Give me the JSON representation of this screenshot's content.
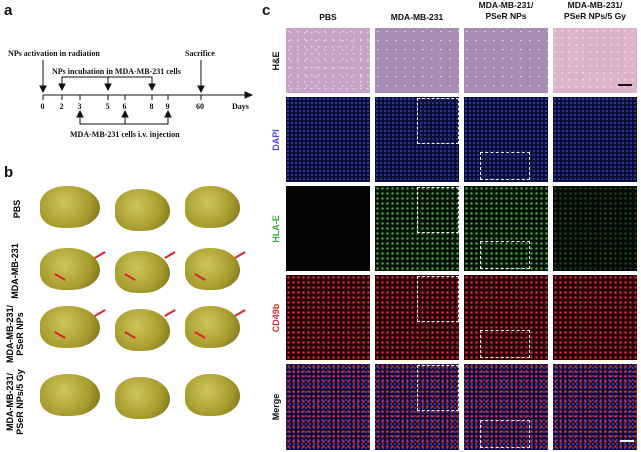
{
  "panels": {
    "a": "a",
    "b": "b",
    "c": "c"
  },
  "timeline": {
    "days": [
      "0",
      "2",
      "3",
      "5",
      "6",
      "8",
      "9",
      "60"
    ],
    "unit": "Days",
    "activation": "NPs activation in radiation",
    "incubation": "NPs incubation in MDA-MB-231 cells",
    "sacrifice": "Sacrifice",
    "injection": "MDA-MB-231 cells i.v. injection"
  },
  "panel_b": {
    "rows": [
      "PBS",
      "MDA-MB-231",
      "MDA-MB-231/\nPSeR NPs",
      "MDA-MB-231/\nPSeR NPs/5 Gy"
    ]
  },
  "panel_c": {
    "columns": [
      "PBS",
      "MDA-MB-231",
      "MDA-MB-231/\nPSeR NPs",
      "MDA-MB-231/\nPSeR NPs/5 Gy"
    ],
    "rows": [
      "H&E",
      "DAPI",
      "HLA-E",
      "CD49b",
      "Merge"
    ],
    "row_colors": [
      "#111111",
      "#4a4acc",
      "#3aa83a",
      "#d02a2a",
      "#111111"
    ]
  }
}
